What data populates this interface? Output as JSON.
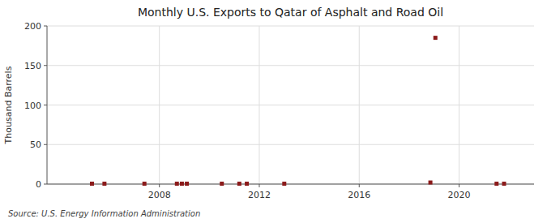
{
  "chart_data": {
    "type": "scatter",
    "title": "Monthly U.S. Exports to Qatar of Asphalt and Road Oil",
    "ylabel": "Thousand Barrels",
    "source": "Source: U.S. Energy Information Administration",
    "x": [
      2005.3,
      2005.8,
      2007.4,
      2008.7,
      2008.9,
      2009.1,
      2010.5,
      2011.2,
      2011.5,
      2013.0,
      2018.85,
      2019.05,
      2021.5,
      2021.8
    ],
    "values": [
      0.5,
      0.5,
      0.5,
      0.5,
      0.5,
      0.5,
      0.5,
      0.5,
      0.5,
      0.5,
      2,
      185,
      0.5,
      0.5
    ],
    "color": "#8b1a1a",
    "marker": "square",
    "xlim": [
      2003.5,
      2023.0
    ],
    "ylim": [
      0,
      200
    ],
    "xticks": [
      2008,
      2012,
      2016,
      2020
    ],
    "yticks": [
      0,
      50,
      100,
      150,
      200
    ],
    "grid": true
  }
}
